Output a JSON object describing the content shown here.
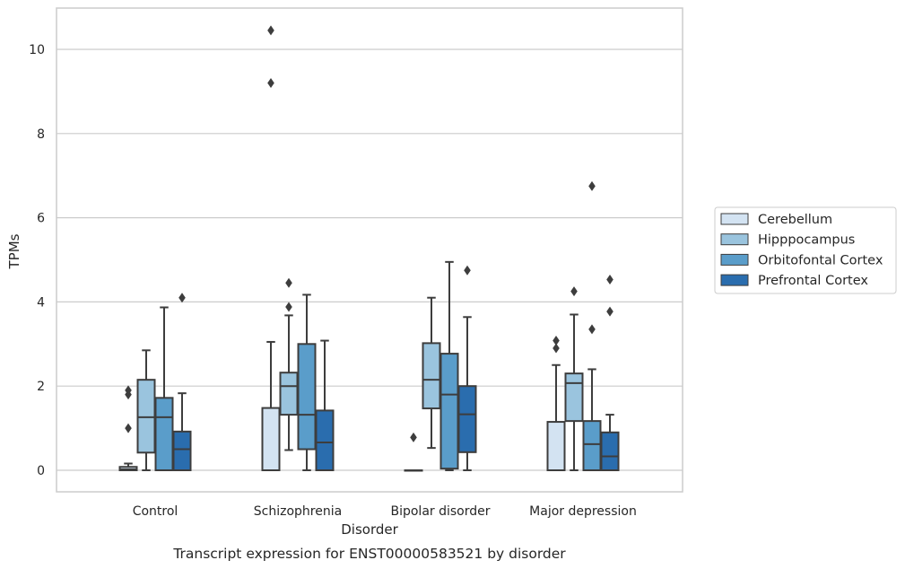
{
  "chart_data": {
    "type": "boxplot",
    "caption": "Transcript expression for ENST00000583521 by disorder",
    "xlabel": "Disorder",
    "ylabel": "TPMs",
    "ylim": [
      -0.5,
      11
    ],
    "yticks": [
      0,
      2,
      4,
      6,
      8,
      10
    ],
    "grid": "horizontal",
    "legend_position": "right",
    "categories": [
      "Control",
      "Schizophrenia",
      "Bipolar disorder",
      "Major depression"
    ],
    "series": [
      {
        "name": "Cerebellum",
        "color": "#d3e3f2",
        "boxes": [
          {
            "whislo": 0,
            "q1": 0,
            "med": 0.02,
            "q3": 0.08,
            "whishi": 0.16,
            "fliers": [
              1.0,
              1.8,
              1.9
            ]
          },
          {
            "whislo": 0,
            "q1": 0,
            "med": 0.0,
            "q3": 1.48,
            "whishi": 3.05,
            "fliers": [
              9.2,
              10.45
            ]
          },
          {
            "whislo": 0,
            "q1": 0,
            "med": 0.0,
            "q3": 0.0,
            "whishi": 0.0,
            "fliers": [
              0.78
            ]
          },
          {
            "whislo": 0,
            "q1": 0,
            "med": 0.0,
            "q3": 1.15,
            "whishi": 2.5,
            "fliers": [
              2.9,
              3.08
            ]
          }
        ]
      },
      {
        "name": "Hipppocampus",
        "color": "#9ac4de",
        "boxes": [
          {
            "whislo": 0,
            "q1": 0.42,
            "med": 1.26,
            "q3": 2.15,
            "whishi": 2.85,
            "fliers": []
          },
          {
            "whislo": 0.48,
            "q1": 1.32,
            "med": 2.0,
            "q3": 2.32,
            "whishi": 3.68,
            "fliers": [
              3.88,
              4.45
            ]
          },
          {
            "whislo": 0.53,
            "q1": 1.47,
            "med": 2.15,
            "q3": 3.02,
            "whishi": 4.1,
            "fliers": []
          },
          {
            "whislo": 0,
            "q1": 1.17,
            "med": 2.07,
            "q3": 2.3,
            "whishi": 3.7,
            "fliers": [
              4.25
            ]
          }
        ]
      },
      {
        "name": "Orbitofontal Cortex",
        "color": "#5a9dca",
        "boxes": [
          {
            "whislo": 0,
            "q1": 0,
            "med": 1.26,
            "q3": 1.72,
            "whishi": 3.87,
            "fliers": []
          },
          {
            "whislo": 0,
            "q1": 0.5,
            "med": 1.32,
            "q3": 3.0,
            "whishi": 4.17,
            "fliers": []
          },
          {
            "whislo": 0,
            "q1": 0.04,
            "med": 1.8,
            "q3": 2.77,
            "whishi": 4.95,
            "fliers": []
          },
          {
            "whislo": 0,
            "q1": 0,
            "med": 0.62,
            "q3": 1.17,
            "whishi": 2.4,
            "fliers": [
              3.35,
              6.75
            ]
          }
        ]
      },
      {
        "name": "Prefrontal Cortex",
        "color": "#2a6dae",
        "boxes": [
          {
            "whislo": 0,
            "q1": 0,
            "med": 0.5,
            "q3": 0.92,
            "whishi": 1.83,
            "fliers": [
              4.1
            ]
          },
          {
            "whislo": 0,
            "q1": 0,
            "med": 0.66,
            "q3": 1.42,
            "whishi": 3.08,
            "fliers": []
          },
          {
            "whislo": 0,
            "q1": 0.43,
            "med": 1.33,
            "q3": 2.0,
            "whishi": 3.64,
            "fliers": [
              4.75
            ]
          },
          {
            "whislo": 0,
            "q1": 0,
            "med": 0.33,
            "q3": 0.9,
            "whishi": 1.32,
            "fliers": [
              3.77,
              4.53
            ]
          }
        ]
      }
    ]
  }
}
